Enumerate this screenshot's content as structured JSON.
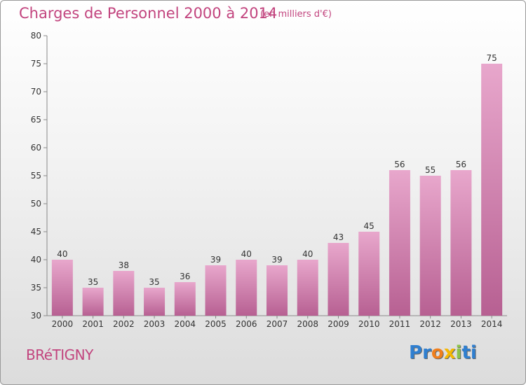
{
  "header": {
    "title": "Charges de Personnel 2000 à 2014",
    "subtitle": "(en milliers d'€)"
  },
  "footer": {
    "city": "BRéTIGNY",
    "logo_letters": [
      "P",
      "r",
      "o",
      "x",
      "i",
      "t",
      "i"
    ],
    "logo_colors": [
      "#2f7fd0",
      "#2f7fd0",
      "#f07f1d",
      "#f6b800",
      "#8bc34a",
      "#2f7fd0",
      "#2f7fd0"
    ]
  },
  "chart_data": {
    "type": "bar",
    "categories": [
      "2000",
      "2001",
      "2002",
      "2003",
      "2004",
      "2005",
      "2006",
      "2007",
      "2008",
      "2009",
      "2010",
      "2011",
      "2012",
      "2013",
      "2014"
    ],
    "values": [
      40,
      35,
      38,
      35,
      36,
      39,
      40,
      39,
      40,
      43,
      45,
      56,
      55,
      56,
      75
    ],
    "ylim": [
      30,
      80
    ],
    "yticks": [
      30,
      35,
      40,
      45,
      50,
      55,
      60,
      65,
      70,
      75,
      80
    ],
    "grid": false,
    "colors": {
      "bar_light": "#e8a7cc",
      "bar_dark": "#b76092",
      "text": "#333333",
      "axis": "#888888"
    }
  }
}
